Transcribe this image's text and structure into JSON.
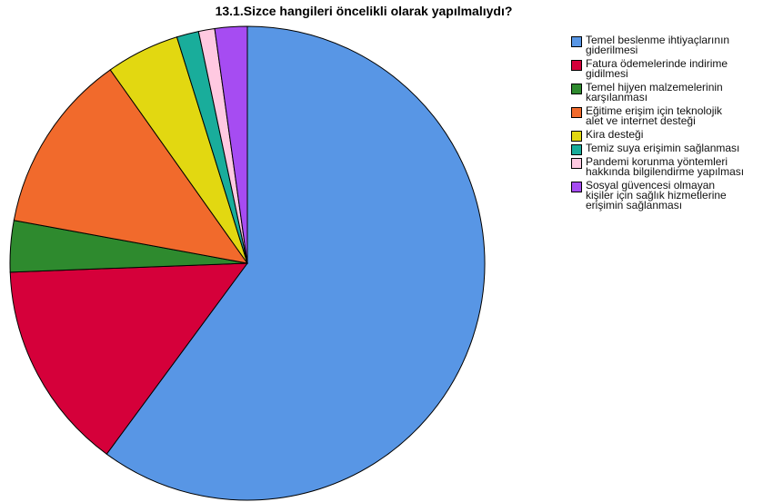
{
  "chart_data": {
    "type": "pie",
    "title": "13.1.Sizce hangileri öncelikli olarak yapılmalıydı?",
    "categories": [
      "Temel beslenme ihtiyaçlarının\ngiderilmesi",
      "Fatura ödemelerinde indirime\ngidilmesi",
      "Temel hijyen malzemelerinin\nkarşılanması",
      "Eğitime erişim için teknolojik\nalet ve internet desteği",
      "Kira desteği",
      "Temiz suya erişimin sağlanması",
      "Pandemi korunma yöntemleri\nhakkında bilgilendirme yapılması",
      "Sosyal güvencesi olmayan\nkişiler için sağlık hizmetlerine\nerişimin sağlanması"
    ],
    "values": [
      60.1,
      14.3,
      3.5,
      12.3,
      5.0,
      1.5,
      1.1,
      2.2
    ],
    "colors": [
      "#5896e5",
      "#d5003a",
      "#2e8a2e",
      "#f16a2c",
      "#e2d811",
      "#19ad9b",
      "#ffc9e1",
      "#a64cf2"
    ],
    "legend": "right"
  }
}
